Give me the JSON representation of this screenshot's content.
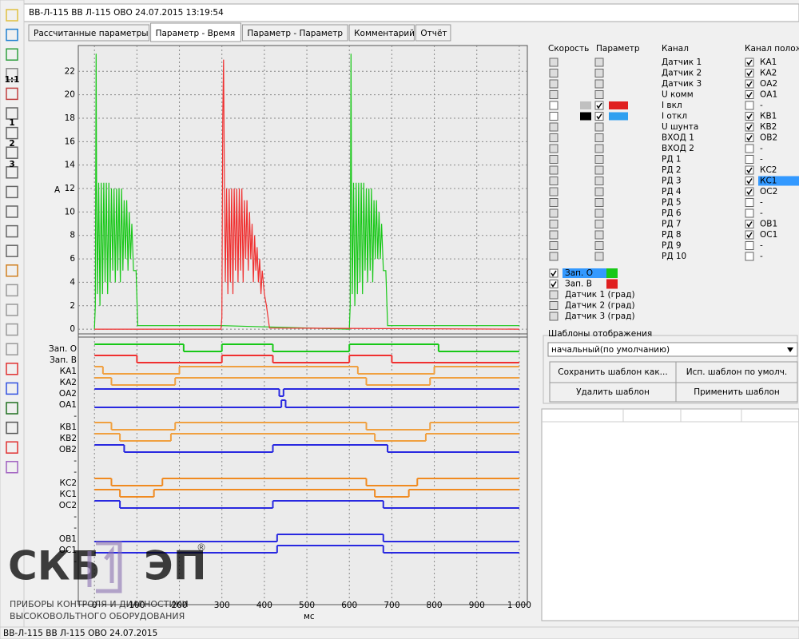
{
  "window": {
    "title": "ВВ-Л-115  ВВ Л-115 ОВО 24.07.2015 13:19:54",
    "status": "ВВ-Л-115  ВВ Л-115 ОВО 24.07.2015"
  },
  "toolbar": {
    "labels": [
      "1:1",
      "1",
      "2",
      "3"
    ]
  },
  "tabs": [
    "Рассчитанные параметры",
    "Параметр - Время",
    "Параметр - Параметр",
    "Комментарий",
    "Отчёт"
  ],
  "active_tab": 1,
  "chart_data": {
    "type": "line",
    "y_label": "A",
    "x_label": "мс",
    "xlim": [
      -38,
      1019
    ],
    "ylim": [
      -0.4,
      24.2
    ],
    "xticks": [
      0,
      100,
      200,
      300,
      400,
      500,
      600,
      700,
      800,
      900,
      {
        "value": 1000,
        "label": "1 000"
      }
    ],
    "yticks": [
      0,
      2,
      4,
      6,
      8,
      10,
      12,
      14,
      16,
      18,
      20,
      22
    ],
    "grid": true,
    "series": [
      {
        "color": "#18c818",
        "x": [
          0,
          2,
          4,
          5,
          7,
          10,
          13,
          16,
          19,
          22,
          25,
          28,
          31,
          34,
          37,
          40,
          43,
          46,
          49,
          52,
          55,
          58,
          61,
          64,
          67,
          70,
          73,
          76,
          79,
          82,
          85,
          88,
          92,
          98,
          102,
          300,
          600,
          602,
          604,
          605,
          607,
          610,
          613,
          616,
          619,
          622,
          625,
          628,
          631,
          634,
          637,
          640,
          643,
          646,
          649,
          652,
          655,
          658,
          661,
          664,
          667,
          670,
          673,
          676,
          680,
          686,
          690,
          1000
        ],
        "values": [
          0,
          2,
          23.5,
          12,
          3,
          12.5,
          2,
          12.5,
          3,
          12.5,
          4,
          12.5,
          3,
          12.5,
          4,
          12,
          5,
          12,
          4,
          12,
          5,
          12,
          4,
          12,
          5,
          11,
          6,
          11,
          5,
          10,
          6,
          9,
          5,
          5,
          0.3,
          0.3,
          0,
          2,
          23.5,
          12,
          3,
          12.5,
          2,
          12.5,
          3,
          12.5,
          4,
          12.5,
          3,
          12.5,
          5,
          12,
          4,
          12,
          5,
          12,
          4,
          11,
          6,
          11,
          6,
          10,
          6,
          9,
          5,
          5,
          0.3,
          0.3
        ]
      },
      {
        "color": "#f03030",
        "x": [
          0,
          298,
          300,
          302,
          304,
          306,
          308,
          311,
          314,
          317,
          320,
          323,
          326,
          329,
          332,
          335,
          338,
          341,
          344,
          347,
          350,
          353,
          356,
          359,
          362,
          365,
          368,
          371,
          374,
          377,
          380,
          383,
          386,
          389,
          392,
          395,
          400,
          405,
          412,
          1000
        ],
        "values": [
          0,
          0,
          1,
          18,
          23,
          12,
          4,
          12,
          3,
          12,
          4,
          12,
          3,
          12,
          5,
          12,
          4,
          12,
          5,
          12,
          4,
          11,
          6,
          11,
          5,
          10,
          6,
          9,
          4,
          8,
          5,
          7,
          4,
          6,
          3,
          5,
          3,
          2,
          0.1,
          0
        ]
      }
    ]
  },
  "digital": {
    "type": "step",
    "channels": [
      {
        "name": "Зап. О",
        "color": "#18c818",
        "x": [
          0,
          210,
          300,
          420,
          600,
          810
        ],
        "values": [
          1,
          0,
          1,
          0,
          1,
          0
        ]
      },
      {
        "name": "Зап. В",
        "color": "#f03030",
        "x": [
          0,
          100,
          300,
          420,
          600,
          700
        ],
        "values": [
          1,
          0,
          1,
          0,
          1,
          0
        ]
      },
      {
        "name": "КА1",
        "color": "#f0a040",
        "x": [
          0,
          20,
          200,
          620,
          800
        ],
        "values": [
          1,
          0,
          1,
          0,
          1
        ]
      },
      {
        "name": "КА2",
        "color": "#f0a040",
        "x": [
          0,
          40,
          190,
          640,
          790
        ],
        "values": [
          1,
          0,
          1,
          0,
          1
        ]
      },
      {
        "name": "ОА2",
        "color": "#2828e0",
        "x": [
          0,
          435,
          445
        ],
        "values": [
          1,
          0,
          1
        ]
      },
      {
        "name": "ОА1",
        "color": "#2828e0",
        "x": [
          0,
          440,
          450
        ],
        "values": [
          0,
          1,
          0
        ]
      },
      {
        "name": "-"
      },
      {
        "name": "КВ1",
        "color": "#f0a040",
        "x": [
          0,
          40,
          190,
          640,
          790
        ],
        "values": [
          1,
          0,
          1,
          0,
          1
        ]
      },
      {
        "name": "КВ2",
        "color": "#f0a040",
        "x": [
          0,
          60,
          180,
          660,
          780
        ],
        "values": [
          1,
          0,
          1,
          0,
          1
        ]
      },
      {
        "name": "ОВ2",
        "color": "#2828e0",
        "x": [
          0,
          70,
          420,
          690
        ],
        "values": [
          1,
          0,
          1,
          0
        ]
      },
      {
        "name": "-"
      },
      {
        "name": "-"
      },
      {
        "name": "КС2",
        "color": "#f08a20",
        "x": [
          0,
          40,
          160,
          640,
          760
        ],
        "values": [
          1,
          0,
          1,
          0,
          1
        ]
      },
      {
        "name": "КС1",
        "color": "#f08a20",
        "x": [
          0,
          60,
          140,
          660,
          740
        ],
        "values": [
          1,
          0,
          1,
          0,
          1
        ]
      },
      {
        "name": "ОС2",
        "color": "#2828e0",
        "x": [
          0,
          60,
          420,
          680
        ],
        "values": [
          1,
          0,
          1,
          0
        ]
      },
      {
        "name": "-"
      },
      {
        "name": "-"
      },
      {
        "name": "ОВ1",
        "color": "#2828e0",
        "x": [
          0,
          430,
          680
        ],
        "values": [
          0,
          1,
          0
        ]
      },
      {
        "name": "ОС1",
        "color": "#2828e0",
        "x": [
          0,
          430,
          680
        ],
        "values": [
          0,
          1,
          0
        ]
      },
      {
        "name": "-"
      }
    ]
  },
  "panel": {
    "headers": [
      "Скорость",
      "Параметр",
      "Канал",
      "Канал полож"
    ],
    "rows": [
      {
        "channel": "Датчик 1",
        "position": "КА1",
        "checked": true
      },
      {
        "channel": "Датчик 2",
        "position": "КА2",
        "checked": true
      },
      {
        "channel": "Датчик 3",
        "position": "ОА2",
        "checked": true
      },
      {
        "channel": "U комм",
        "position": "ОА1",
        "checked": true
      },
      {
        "channel": "I вкл",
        "position": "-",
        "checked": false,
        "param_checked": true,
        "colors": [
          "#c0c0c0",
          "#e02020"
        ]
      },
      {
        "channel": "I откл",
        "position": "КВ1",
        "checked": true,
        "param_checked": true,
        "colors": [
          "#000000",
          "#30a0f0"
        ]
      },
      {
        "channel": "U шунта",
        "position": "КВ2",
        "checked": true
      },
      {
        "channel": "ВХОД 1",
        "position": "ОВ2",
        "checked": true
      },
      {
        "channel": "ВХОД 2",
        "position": "-",
        "checked": false
      },
      {
        "channel": "РД 1",
        "position": "-",
        "checked": false
      },
      {
        "channel": "РД 2",
        "position": "КС2",
        "checked": true
      },
      {
        "channel": "РД 3",
        "position": "КС1",
        "checked": true,
        "selected": true
      },
      {
        "channel": "РД 4",
        "position": "ОС2",
        "checked": true
      },
      {
        "channel": "РД 5",
        "position": "-",
        "checked": false
      },
      {
        "channel": "РД 6",
        "position": "-",
        "checked": false
      },
      {
        "channel": "РД 7",
        "position": "ОВ1",
        "checked": true
      },
      {
        "channel": "РД 8",
        "position": "ОС1",
        "checked": true
      },
      {
        "channel": "РД 9",
        "position": "-",
        "checked": false
      },
      {
        "channel": "РД 10",
        "position": "-",
        "checked": false
      }
    ],
    "digital_list": [
      {
        "label": "Зап. О",
        "checked": true,
        "selected": true,
        "color": "#18c818"
      },
      {
        "label": "Зап. В",
        "checked": true,
        "color": "#e02020"
      },
      {
        "label": "Датчик 1 (град)",
        "disabled": true
      },
      {
        "label": "Датчик 2 (град)",
        "disabled": true
      },
      {
        "label": "Датчик 3 (град)",
        "disabled": true
      }
    ]
  },
  "templates": {
    "title": "Шаблоны отображения",
    "current": "начальный(по умолчанию)",
    "buttons": [
      "Сохранить шаблон как...",
      "Исп. шаблон по умолч.",
      "Удалить шаблон",
      "Применить шаблон"
    ]
  },
  "logo": {
    "big1": "СКБ",
    "big2": "ЭП",
    "reg": "®",
    "line1": "ПРИБОРЫ КОНТРОЛЯ И ДИАГНОСТИКИ",
    "line2": "ВЫСОКОВОЛЬТНОГО ОБОРУДОВАНИЯ"
  }
}
